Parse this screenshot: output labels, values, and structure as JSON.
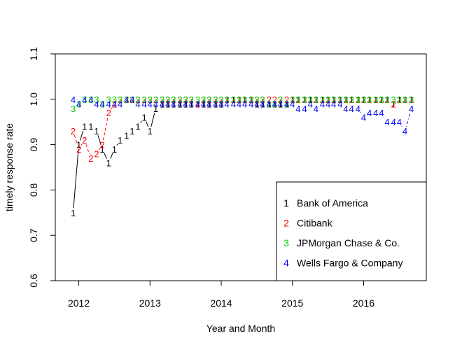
{
  "chart_data": {
    "type": "line",
    "title": "",
    "xlabel": "Year and Month",
    "ylabel": "timely response rate",
    "xlim": [
      2011.67,
      2016.88
    ],
    "ylim": [
      0.6,
      1.1
    ],
    "x_ticks": [
      2012,
      2013,
      2014,
      2015,
      2016
    ],
    "x_tick_labels": [
      "2012",
      "2013",
      "2014",
      "2015",
      "2016"
    ],
    "y_ticks": [
      0.6,
      0.7,
      0.8,
      0.9,
      1.0,
      1.1
    ],
    "y_tick_labels": [
      "0.6",
      "0.7",
      "0.8",
      "0.9",
      "1.0",
      "1.1"
    ],
    "legend_position": "bottom-right",
    "x": [
      2011.92,
      2012.0,
      2012.08,
      2012.17,
      2012.25,
      2012.33,
      2012.42,
      2012.5,
      2012.58,
      2012.67,
      2012.75,
      2012.83,
      2012.92,
      2013.0,
      2013.08,
      2013.17,
      2013.25,
      2013.33,
      2013.42,
      2013.5,
      2013.58,
      2013.67,
      2013.75,
      2013.83,
      2013.92,
      2014.0,
      2014.08,
      2014.17,
      2014.25,
      2014.33,
      2014.42,
      2014.5,
      2014.58,
      2014.67,
      2014.75,
      2014.83,
      2014.92,
      2015.0,
      2015.08,
      2015.17,
      2015.25,
      2015.33,
      2015.42,
      2015.5,
      2015.58,
      2015.67,
      2015.75,
      2015.83,
      2015.92,
      2016.0,
      2016.08,
      2016.17,
      2016.25,
      2016.33,
      2016.42,
      2016.5,
      2016.58,
      2016.67
    ],
    "series": [
      {
        "name": "Bank of America",
        "symbol": "1",
        "color": "#000000",
        "line_style": "solid",
        "values": [
          0.75,
          0.9,
          0.94,
          0.94,
          0.93,
          0.89,
          0.86,
          0.89,
          0.91,
          0.92,
          0.93,
          0.94,
          0.96,
          0.93,
          0.98,
          0.99,
          0.99,
          0.99,
          0.99,
          0.99,
          0.99,
          0.99,
          0.99,
          0.99,
          0.99,
          0.99,
          1.0,
          1.0,
          1.0,
          1.0,
          1.0,
          0.99,
          0.99,
          0.99,
          0.99,
          0.99,
          0.99,
          1.0,
          1.0,
          1.0,
          1.0,
          1.0,
          1.0,
          1.0,
          1.0,
          1.0,
          1.0,
          1.0,
          1.0,
          1.0,
          1.0,
          1.0,
          1.0,
          1.0,
          0.99,
          1.0,
          1.0,
          1.0
        ]
      },
      {
        "name": "Citibank",
        "symbol": "2",
        "color": "#ff0000",
        "line_style": "dashed",
        "values": [
          0.93,
          0.89,
          0.91,
          0.87,
          0.88,
          0.9,
          0.97,
          0.99,
          1.0,
          1.0,
          1.0,
          1.0,
          1.0,
          1.0,
          1.0,
          1.0,
          1.0,
          1.0,
          1.0,
          1.0,
          1.0,
          0.99,
          1.0,
          1.0,
          1.0,
          1.0,
          1.0,
          1.0,
          1.0,
          1.0,
          1.0,
          1.0,
          1.0,
          1.0,
          1.0,
          1.0,
          1.0,
          1.0,
          1.0,
          1.0,
          1.0,
          1.0,
          1.0,
          1.0,
          1.0,
          1.0,
          1.0,
          1.0,
          1.0,
          1.0,
          1.0,
          1.0,
          1.0,
          1.0,
          0.99,
          1.0,
          1.0,
          1.0
        ]
      },
      {
        "name": "JPMorgan Chase & Co.",
        "symbol": "3",
        "color": "#00cd00",
        "line_style": "dotted",
        "values": [
          0.98,
          0.99,
          1.0,
          1.0,
          1.0,
          0.99,
          1.0,
          1.0,
          1.0,
          1.0,
          1.0,
          1.0,
          1.0,
          1.0,
          1.0,
          1.0,
          1.0,
          1.0,
          1.0,
          1.0,
          1.0,
          1.0,
          1.0,
          1.0,
          1.0,
          1.0,
          1.0,
          1.0,
          1.0,
          1.0,
          1.0,
          1.0,
          1.0,
          0.99,
          0.99,
          1.0,
          0.99,
          1.0,
          1.0,
          1.0,
          1.0,
          1.0,
          1.0,
          1.0,
          1.0,
          1.0,
          1.0,
          1.0,
          1.0,
          1.0,
          1.0,
          1.0,
          1.0,
          1.0,
          1.0,
          1.0,
          1.0,
          1.0
        ]
      },
      {
        "name": "Wells Fargo & Company",
        "symbol": "4",
        "color": "#0000ff",
        "line_style": "dotdash",
        "values": [
          1.0,
          0.99,
          1.0,
          1.0,
          0.99,
          0.99,
          0.99,
          0.99,
          0.99,
          1.0,
          1.0,
          0.99,
          0.99,
          0.99,
          0.99,
          0.99,
          0.99,
          0.99,
          0.99,
          0.99,
          0.99,
          0.99,
          0.99,
          0.99,
          0.99,
          0.99,
          0.99,
          0.99,
          0.99,
          0.99,
          0.99,
          0.99,
          0.99,
          0.99,
          0.99,
          0.99,
          0.99,
          0.99,
          0.98,
          0.98,
          0.99,
          0.98,
          0.99,
          0.99,
          0.99,
          0.99,
          0.98,
          0.98,
          0.98,
          0.96,
          0.97,
          0.97,
          0.97,
          0.95,
          0.95,
          0.95,
          0.93,
          0.98
        ]
      }
    ]
  }
}
